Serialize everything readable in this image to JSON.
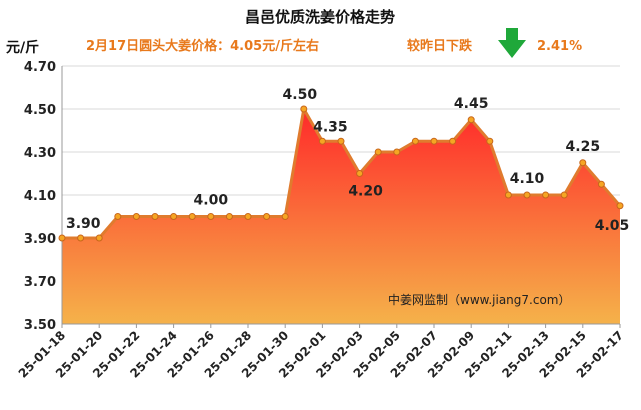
{
  "header": {
    "title": "昌邑优质洗姜价格走势",
    "unit": "元/斤",
    "price_note": "2月17日圆头大姜价格：4.05元/斤左右",
    "change_label": "较昨日下跌",
    "change_value": "2.41%",
    "change_icon": "down-arrow-icon"
  },
  "watermark": "中姜网监制（www.jiang7.com）",
  "colors": {
    "accent": "#e8791c",
    "change_value": "#e8791c",
    "arrow": "#1fa83a",
    "line": "#e07b2e",
    "area_top": "#ff2a2a",
    "area_bottom": "#f5b24a",
    "grid": "#d9d9d9"
  },
  "chart_data": {
    "type": "area",
    "title": "昌邑优质洗姜价格走势",
    "ylabel": "元/斤",
    "xlabel": "",
    "ylim": [
      3.5,
      4.7
    ],
    "yticks": [
      "3.50",
      "3.70",
      "3.90",
      "4.10",
      "4.30",
      "4.50",
      "4.70"
    ],
    "grid": "horizontal",
    "x": [
      "25-01-18",
      "25-01-19",
      "25-01-20",
      "25-01-21",
      "25-01-22",
      "25-01-23",
      "25-01-24",
      "25-01-25",
      "25-01-26",
      "25-01-27",
      "25-01-28",
      "25-01-29",
      "25-01-30",
      "25-01-31",
      "25-02-01",
      "25-02-02",
      "25-02-03",
      "25-02-04",
      "25-02-05",
      "25-02-06",
      "25-02-07",
      "25-02-08",
      "25-02-09",
      "25-02-10",
      "25-02-11",
      "25-02-12",
      "25-02-13",
      "25-02-14",
      "25-02-15",
      "25-02-16",
      "25-02-17"
    ],
    "xtick_labels": [
      "25-01-18",
      "25-01-20",
      "25-01-22",
      "25-01-24",
      "25-01-26",
      "25-01-28",
      "25-01-30",
      "25-02-01",
      "25-02-03",
      "25-02-05",
      "25-02-07",
      "25-02-09",
      "25-02-11",
      "25-02-13",
      "25-02-15",
      "25-02-17"
    ],
    "series": [
      {
        "values": [
          3.9,
          3.9,
          3.9,
          4.0,
          4.0,
          4.0,
          4.0,
          4.0,
          4.0,
          4.0,
          4.0,
          4.0,
          4.0,
          4.5,
          4.35,
          4.35,
          4.2,
          4.3,
          4.3,
          4.35,
          4.35,
          4.35,
          4.45,
          4.35,
          4.1,
          4.1,
          4.1,
          4.1,
          4.25,
          4.15,
          4.05
        ]
      }
    ],
    "data_labels": [
      {
        "index": 0,
        "text": "3.90"
      },
      {
        "index": 8,
        "text": "4.00"
      },
      {
        "index": 13,
        "text": "4.50"
      },
      {
        "index": 14,
        "text": "4.35"
      },
      {
        "index": 16,
        "text": "4.20"
      },
      {
        "index": 22,
        "text": "4.45"
      },
      {
        "index": 25,
        "text": "4.10"
      },
      {
        "index": 28,
        "text": "4.25"
      },
      {
        "index": 30,
        "text": "4.05"
      }
    ]
  }
}
